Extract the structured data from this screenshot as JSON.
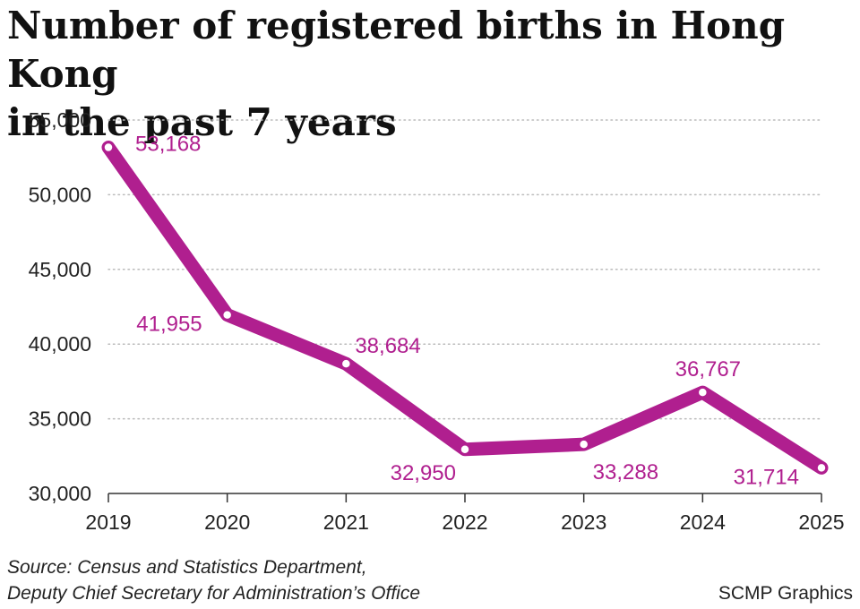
{
  "title_line1": "Number of registered births in Hong Kong",
  "title_line2": "in the past 7 years",
  "source_line1": "Source: Census and Statistics Department,",
  "source_line2": "Deputy Chief Secretary for Administration’s Office",
  "credit": "SCMP Graphics",
  "colors": {
    "series": "#b01f8f",
    "label": "#b01f8f",
    "grid": "#bbbbbb",
    "axis": "#333333"
  },
  "chart_data": {
    "type": "line",
    "x": [
      "2019",
      "2020",
      "2021",
      "2022",
      "2023",
      "2024",
      "2025"
    ],
    "values": [
      53168,
      41955,
      38684,
      32950,
      33288,
      36767,
      31714
    ],
    "data_labels": [
      "53,168",
      "41,955",
      "38,684",
      "32,950",
      "33,288",
      "36,767",
      "31,714"
    ],
    "yticks": [
      30000,
      35000,
      40000,
      45000,
      50000,
      55000
    ],
    "ytick_labels": [
      "30,000",
      "35,000",
      "40,000",
      "45,000",
      "50,000",
      "55,000"
    ],
    "ylim": [
      30000,
      55000
    ],
    "grid": "horizontal dotted",
    "markers": "hollow circles"
  }
}
